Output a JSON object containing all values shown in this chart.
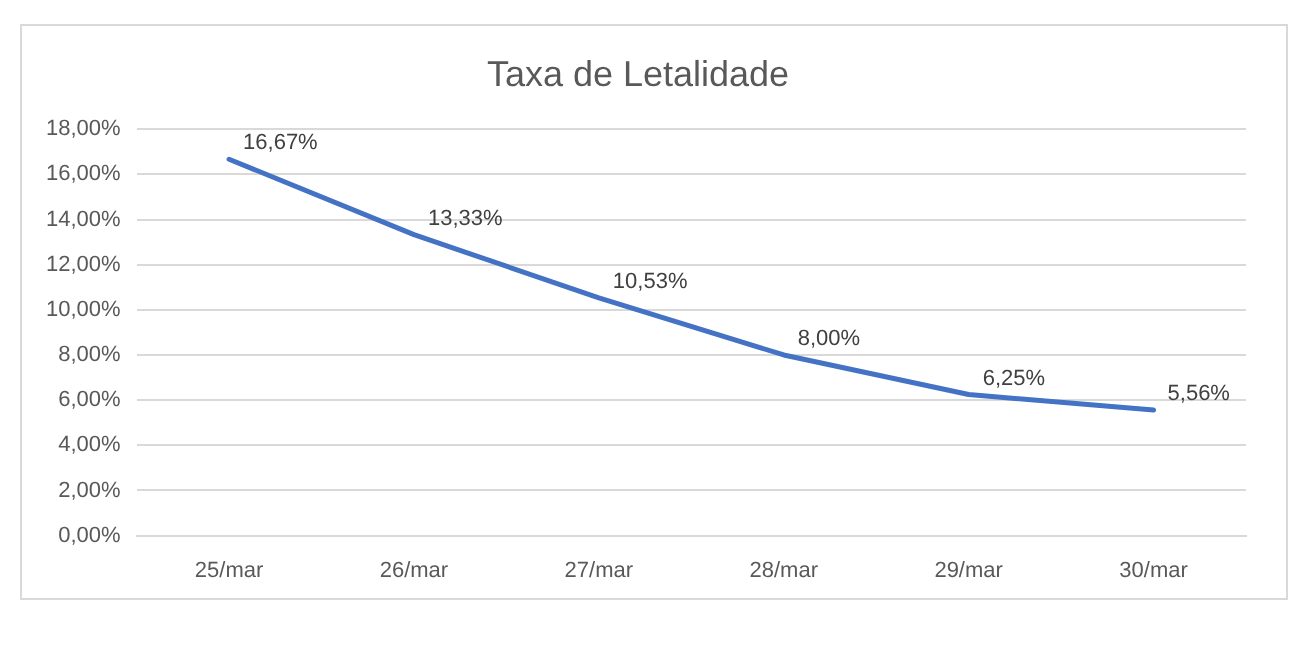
{
  "chart_data": {
    "type": "line",
    "title": "Taxa de Letalidade",
    "categories": [
      "25/mar",
      "26/mar",
      "27/mar",
      "28/mar",
      "29/mar",
      "30/mar"
    ],
    "series": [
      {
        "color": "#4472c4",
        "values": [
          16.67,
          13.33,
          10.53,
          8.0,
          6.25,
          5.56
        ],
        "value_labels": [
          "16,67%",
          "13,33%",
          "10,53%",
          "8,00%",
          "6,25%",
          "5,56%"
        ]
      }
    ],
    "ylim": [
      0,
      18
    ],
    "yticks": [
      {
        "value": 0,
        "label": "0,00%"
      },
      {
        "value": 2,
        "label": "2,00%"
      },
      {
        "value": 4,
        "label": "4,00%"
      },
      {
        "value": 6,
        "label": "6,00%"
      },
      {
        "value": 8,
        "label": "8,00%"
      },
      {
        "value": 10,
        "label": "10,00%"
      },
      {
        "value": 12,
        "label": "12,00%"
      },
      {
        "value": 14,
        "label": "14,00%"
      },
      {
        "value": 16,
        "label": "16,00%"
      },
      {
        "value": 18,
        "label": "18,00%"
      }
    ],
    "grid": "y",
    "legend": false,
    "marker": "none",
    "line_style": "solid"
  }
}
